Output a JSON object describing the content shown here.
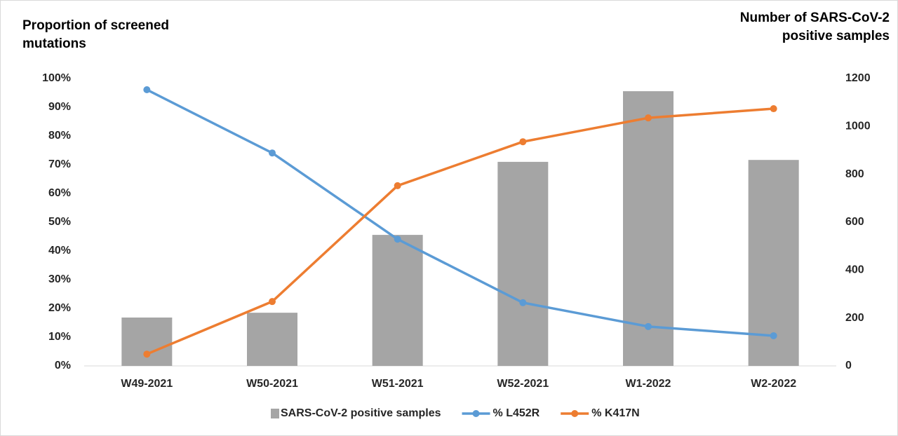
{
  "chart_data": {
    "type": "bar",
    "y_label": "Proportion of screened mutations",
    "y2_label": "Number of SARS-CoV-2 positive samples",
    "categories": [
      "W49-2021",
      "W50-2021",
      "W51-2021",
      "W52-2021",
      "W1-2022",
      "W2-2022"
    ],
    "series": [
      {
        "name": "SARS-CoV-2 positive samples",
        "type": "bar",
        "axis": "y2",
        "color": "#a5a5a5",
        "values": [
          202,
          222,
          547,
          852,
          1147,
          860
        ]
      },
      {
        "name": "% L452R",
        "type": "line",
        "color": "#5b9bd5",
        "values": [
          96.1,
          74.1,
          44.1,
          22,
          13.7,
          10.5
        ]
      },
      {
        "name": "% K417N",
        "type": "line",
        "color": "#ed7d31",
        "values": [
          4.1,
          22.4,
          62.7,
          78,
          86.3,
          89.5
        ]
      }
    ],
    "ylim": [
      0,
      100
    ],
    "yticks": [
      {
        "value": 0,
        "label": "0%"
      },
      {
        "value": 10,
        "label": "10%"
      },
      {
        "value": 20,
        "label": "20%"
      },
      {
        "value": 30,
        "label": "30%"
      },
      {
        "value": 40,
        "label": "40%"
      },
      {
        "value": 50,
        "label": "50%"
      },
      {
        "value": 60,
        "label": "60%"
      },
      {
        "value": 70,
        "label": "70%"
      },
      {
        "value": 80,
        "label": "80%"
      },
      {
        "value": 90,
        "label": "90%"
      },
      {
        "value": 100,
        "label": "100%"
      }
    ],
    "y2lim": [
      0,
      1200
    ],
    "y2ticks": [
      0,
      200,
      400,
      600,
      800,
      1000,
      1200
    ],
    "grid": false,
    "legend": "bottom"
  }
}
